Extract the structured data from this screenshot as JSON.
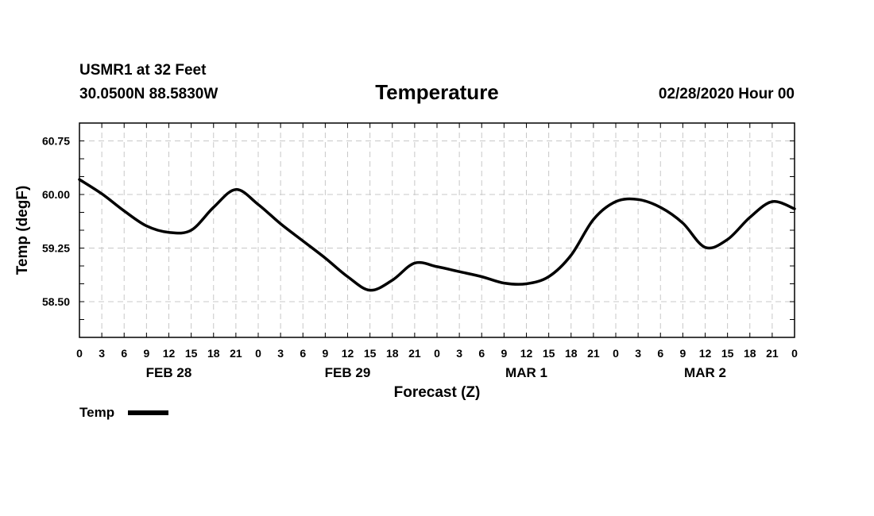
{
  "header": {
    "station": "USMR1 at 32 Feet",
    "coords": "30.0500N 88.5830W",
    "datetime": "02/28/2020 Hour 00"
  },
  "legend": {
    "label": "Temp"
  },
  "chart_data": {
    "type": "line",
    "title": "Temperature",
    "xlabel": "Forecast (Z)",
    "ylabel": "Temp (degF)",
    "ylim": [
      58.0,
      61.0
    ],
    "yticks": [
      58.5,
      59.25,
      60.0,
      60.75
    ],
    "ytick_labels": [
      "58.50",
      "59.25",
      "60.00",
      "60.75"
    ],
    "y_minor_step": 0.25,
    "xlim": [
      0,
      96
    ],
    "x_unit": "hours since 02/28/2020 Hour 00",
    "xtick_step": 3,
    "xtick_labels": [
      "0",
      "3",
      "6",
      "9",
      "12",
      "15",
      "18",
      "21",
      "0",
      "3",
      "6",
      "9",
      "12",
      "15",
      "18",
      "21",
      "0",
      "3",
      "6",
      "9",
      "12",
      "15",
      "18",
      "21",
      "0",
      "3",
      "6",
      "9",
      "12",
      "15",
      "18",
      "21",
      "0"
    ],
    "day_labels": [
      {
        "label": "FEB 28",
        "x": 12
      },
      {
        "label": "FEB 29",
        "x": 36
      },
      {
        "label": "MAR 1",
        "x": 60
      },
      {
        "label": "MAR 2",
        "x": 84
      }
    ],
    "grid": true,
    "legend_position": "bottom-left",
    "series": [
      {
        "name": "Temp",
        "color": "#000000",
        "x": [
          0,
          3,
          6,
          9,
          12,
          15,
          18,
          21,
          24,
          27,
          30,
          33,
          36,
          39,
          42,
          45,
          48,
          51,
          54,
          57,
          60,
          63,
          66,
          69,
          72,
          75,
          78,
          81,
          84,
          87,
          90,
          93,
          96
        ],
        "y": [
          60.21,
          60.01,
          59.77,
          59.56,
          59.47,
          59.5,
          59.82,
          60.07,
          59.86,
          59.59,
          59.35,
          59.11,
          58.85,
          58.66,
          58.8,
          59.04,
          58.99,
          58.92,
          58.85,
          58.76,
          58.75,
          58.85,
          59.15,
          59.65,
          59.9,
          59.93,
          59.82,
          59.6,
          59.26,
          59.37,
          59.68,
          59.9,
          59.8
        ]
      }
    ]
  }
}
